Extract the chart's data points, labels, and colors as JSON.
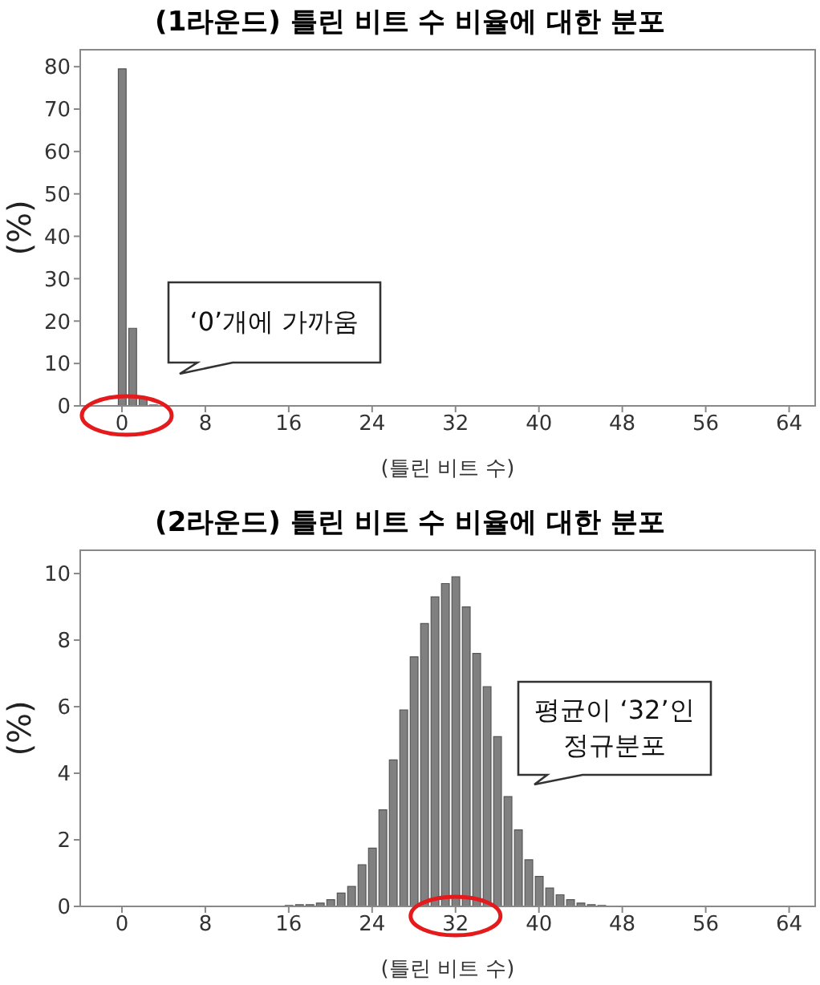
{
  "chart_data": [
    {
      "type": "bar",
      "title": "(1라운드) 틀린 비트 수 비율에 대한 분포",
      "xlabel": "(틀린 비트 수)",
      "ylabel": "(%)",
      "x": [
        0,
        1,
        2,
        3
      ],
      "values": [
        79.5,
        18.3,
        2.0,
        0.2
      ],
      "color": "#808080",
      "xlim": [
        -4,
        66.5
      ],
      "xticks": [
        0,
        8,
        16,
        24,
        32,
        40,
        48,
        56,
        64
      ],
      "ylim": [
        0,
        84
      ],
      "yticks": [
        0,
        10,
        20,
        30,
        40,
        50,
        60,
        70,
        80
      ],
      "annotations": [
        "‘0’개에 가까움"
      ]
    },
    {
      "type": "bar",
      "title": "(2라운드) 틀린 비트 수 비율에 대한 분포",
      "xlabel": "(틀린 비트 수)",
      "ylabel": "(%)",
      "x": [
        16,
        17,
        18,
        19,
        20,
        21,
        22,
        23,
        24,
        25,
        26,
        27,
        28,
        29,
        30,
        31,
        32,
        33,
        34,
        35,
        36,
        37,
        38,
        39,
        40,
        41,
        42,
        43,
        44,
        45,
        46
      ],
      "values": [
        0.03,
        0.05,
        0.05,
        0.1,
        0.2,
        0.4,
        0.6,
        1.25,
        1.75,
        2.9,
        4.4,
        5.9,
        7.5,
        8.5,
        9.3,
        9.7,
        9.9,
        9.0,
        7.6,
        6.6,
        5.1,
        3.3,
        2.3,
        1.4,
        0.9,
        0.55,
        0.35,
        0.2,
        0.1,
        0.05,
        0.03
      ],
      "color": "#808080",
      "xlim": [
        -4,
        66.5
      ],
      "xticks": [
        0,
        8,
        16,
        24,
        32,
        40,
        48,
        56,
        64
      ],
      "ylim": [
        0,
        10.7
      ],
      "yticks": [
        0,
        2,
        4,
        6,
        8,
        10
      ],
      "annotations": [
        "평균이 ‘32’인\n정규분포"
      ]
    }
  ]
}
